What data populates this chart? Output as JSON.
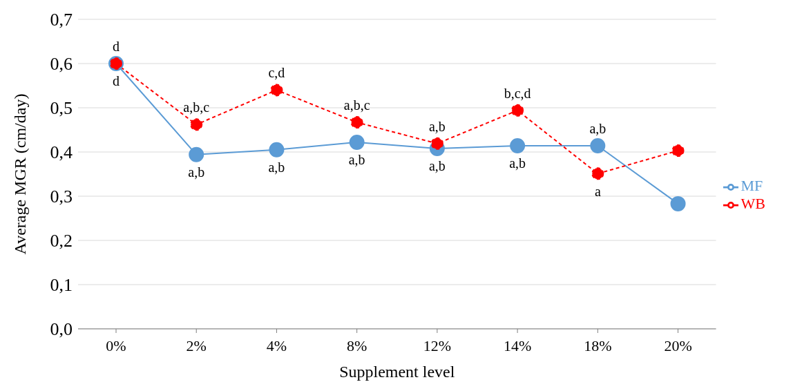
{
  "chart_data": {
    "type": "line",
    "xlabel": "Supplement level",
    "ylabel": "Average MGR (cm/day)",
    "categories": [
      "0%",
      "2%",
      "4%",
      "8%",
      "12%",
      "14%",
      "18%",
      "20%"
    ],
    "series": [
      {
        "name": "MF",
        "color": "#5b9bd5",
        "line_style": "solid",
        "values": [
          0.6,
          0.394,
          0.405,
          0.422,
          0.408,
          0.414,
          0.414,
          0.283
        ]
      },
      {
        "name": "WB",
        "color": "#ff0000",
        "line_style": "dashed",
        "values": [
          0.6,
          0.462,
          0.54,
          0.467,
          0.419,
          0.494,
          0.351,
          0.403
        ]
      }
    ],
    "ylim": [
      0,
      0.7
    ],
    "yticks": [
      {
        "value": 0,
        "label": "0,0"
      },
      {
        "value": 0.1,
        "label": "0,1"
      },
      {
        "value": 0.2,
        "label": "0,2"
      },
      {
        "value": 0.3,
        "label": "0,3"
      },
      {
        "value": 0.4,
        "label": "0,4"
      },
      {
        "value": 0.5,
        "label": "0,5"
      },
      {
        "value": 0.6,
        "label": "0,6"
      },
      {
        "value": 0.7,
        "label": "0,7"
      }
    ],
    "grid": "y",
    "legend": "right",
    "marker": "circle",
    "annotations": [
      {
        "text": "d",
        "x": "0%",
        "y": 0.6
      },
      {
        "text": "d",
        "x": "0%",
        "y": 0.6
      },
      {
        "text": "a,b,c",
        "x": "2%",
        "y": 0.462
      },
      {
        "text": "a,b",
        "x": "2%",
        "y": 0.394
      },
      {
        "text": "c,d",
        "x": "4%",
        "y": 0.54
      },
      {
        "text": "a,b",
        "x": "4%",
        "y": 0.405
      },
      {
        "text": "a,b,c",
        "x": "8%",
        "y": 0.467
      },
      {
        "text": "a,b",
        "x": "8%",
        "y": 0.422
      },
      {
        "text": "a,b",
        "x": "12%",
        "y": 0.419
      },
      {
        "text": "a,b",
        "x": "12%",
        "y": 0.408
      },
      {
        "text": "b,c,d",
        "x": "14%",
        "y": 0.494
      },
      {
        "text": "a,b",
        "x": "14%",
        "y": 0.414
      },
      {
        "text": "a,b",
        "x": "18%",
        "y": 0.414
      },
      {
        "text": "a",
        "x": "18%",
        "y": 0.351
      }
    ]
  }
}
